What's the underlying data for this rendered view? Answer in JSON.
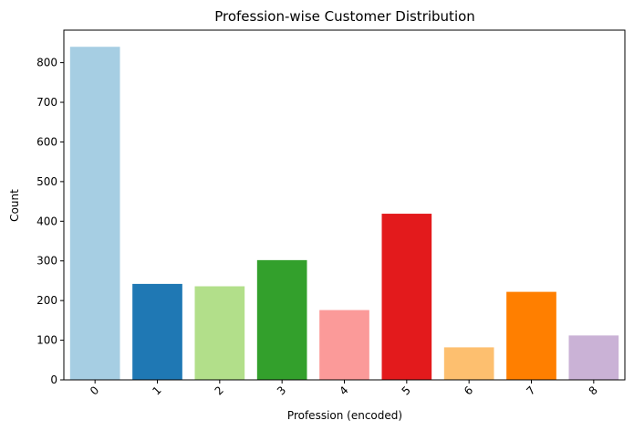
{
  "chart_data": {
    "type": "bar",
    "title": "Profession-wise Customer Distribution",
    "xlabel": "Profession (encoded)",
    "ylabel": "Count",
    "categories": [
      "0",
      "1",
      "2",
      "3",
      "4",
      "5",
      "6",
      "7",
      "8"
    ],
    "values": [
      840,
      242,
      236,
      302,
      176,
      419,
      82,
      222,
      112
    ],
    "colors": [
      "#a6cee3",
      "#1f78b4",
      "#b2df8a",
      "#33a02c",
      "#fb9a99",
      "#e31a1c",
      "#fdbf6f",
      "#ff7f00",
      "#cab2d6"
    ],
    "ylim": [
      0,
      882
    ],
    "yticks": [
      0,
      100,
      200,
      300,
      400,
      500,
      600,
      700,
      800
    ],
    "xtick_rotation": 45,
    "grid": false,
    "legend": "none"
  }
}
